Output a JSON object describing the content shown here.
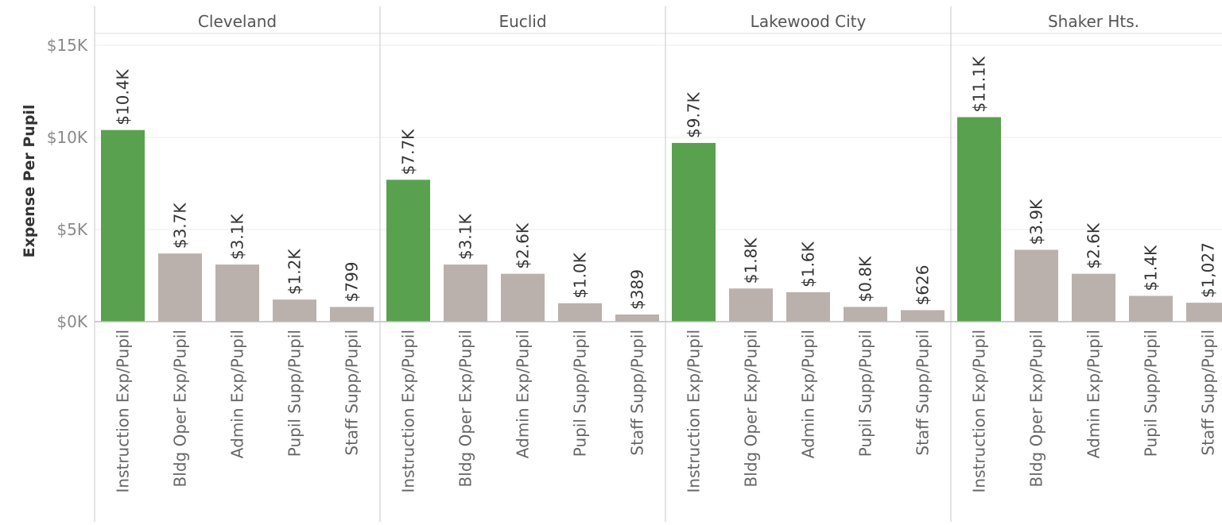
{
  "chart_data": {
    "type": "bar",
    "ylabel": "Expense Per Pupil",
    "ylim": [
      0,
      15000
    ],
    "yticks": [
      {
        "value": 0,
        "label": "$0K"
      },
      {
        "value": 5000,
        "label": "$5K"
      },
      {
        "value": 10000,
        "label": "$10K"
      },
      {
        "value": 15000,
        "label": "$15K"
      }
    ],
    "grid": true,
    "categories": [
      "Instruction Exp/Pupil",
      "Bldg Oper Exp/Pupil",
      "Admin Exp/Pupil",
      "Pupil Supp/Pupil",
      "Staff Supp/Pupil"
    ],
    "panels": [
      {
        "name": "Cleveland",
        "values": [
          10400,
          3700,
          3100,
          1200,
          799
        ],
        "labels": [
          "$10.4K",
          "$3.7K",
          "$3.1K",
          "$1.2K",
          "$799"
        ]
      },
      {
        "name": "Euclid",
        "values": [
          7700,
          3100,
          2600,
          1000,
          389
        ],
        "labels": [
          "$7.7K",
          "$3.1K",
          "$2.6K",
          "$1.0K",
          "$389"
        ]
      },
      {
        "name": "Lakewood City",
        "values": [
          9700,
          1800,
          1600,
          800,
          626
        ],
        "labels": [
          "$9.7K",
          "$1.8K",
          "$1.6K",
          "$0.8K",
          "$626"
        ]
      },
      {
        "name": "Shaker Hts.",
        "values": [
          11100,
          3900,
          2600,
          1400,
          1027
        ],
        "labels": [
          "$11.1K",
          "$3.9K",
          "$2.6K",
          "$1.4K",
          "$1,027"
        ]
      }
    ],
    "colors": {
      "highlight": "#59a14f",
      "default": "#bab0ac",
      "grid": "#ececec",
      "divider": "#c8c8c8"
    }
  }
}
